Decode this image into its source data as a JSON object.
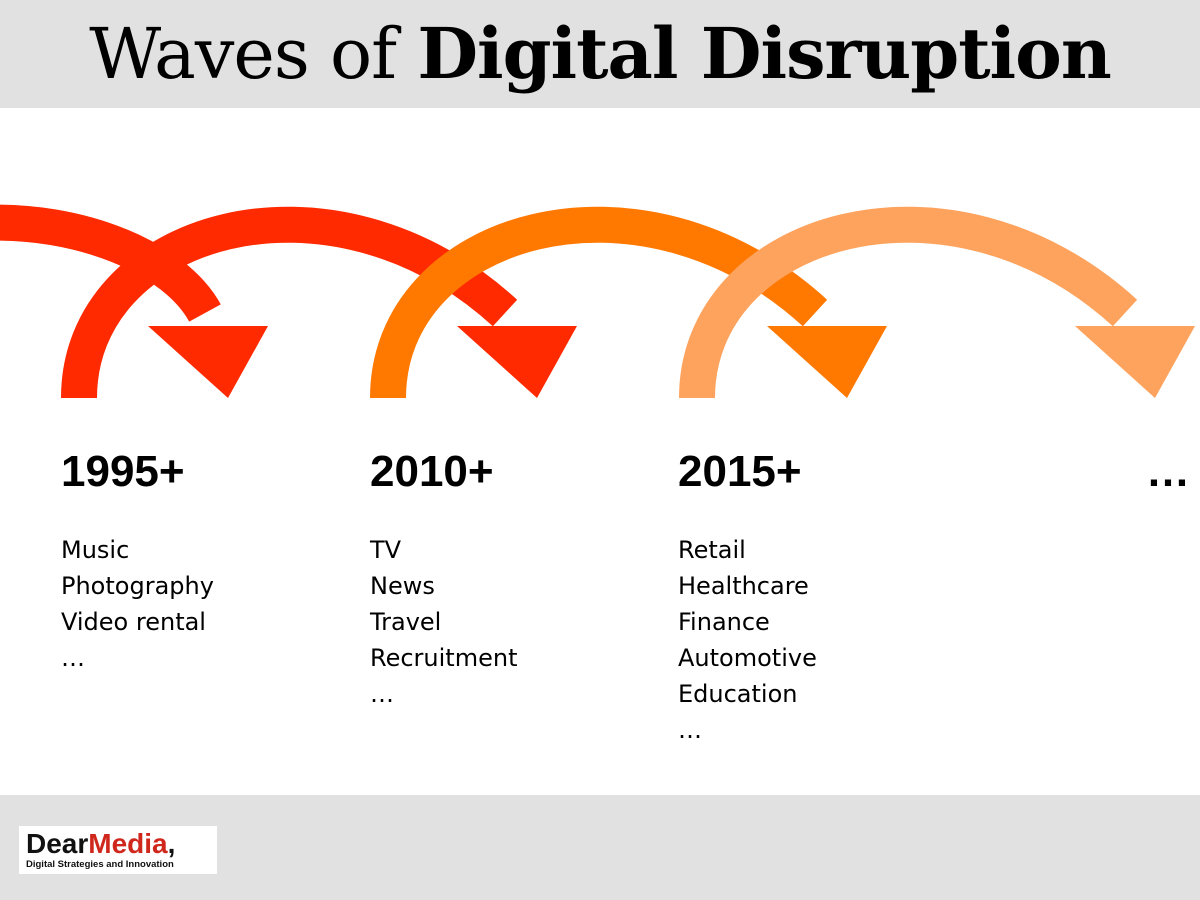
{
  "title": {
    "prefix": "Waves of",
    "emphasis": "Digital Disruption"
  },
  "waves": [
    {
      "year": "1995+",
      "color": "#ff2a00",
      "items": [
        "Music",
        "Photography",
        "Video rental",
        "…"
      ]
    },
    {
      "year": "2010+",
      "color": "#ff7800",
      "items": [
        "TV",
        "News",
        "Travel",
        "Recruitment",
        "…"
      ]
    },
    {
      "year": "2015+",
      "color": "#fda35e",
      "items": [
        "Retail",
        "Healthcare",
        "Finance",
        "Automotive",
        "Education",
        "…"
      ]
    }
  ],
  "continuation": "…",
  "colors": {
    "header_background": "#e1e1e1",
    "footer_background": "#e1e1e1",
    "wave_1": "#ff2a00",
    "wave_2": "#ff7800",
    "wave_3": "#fda35e",
    "logo_accent": "#d0271d"
  },
  "logo": {
    "name_part1": "Dear",
    "name_part2": "Media",
    "name_suffix": ",",
    "tagline": "Digital Strategies and Innovation"
  }
}
